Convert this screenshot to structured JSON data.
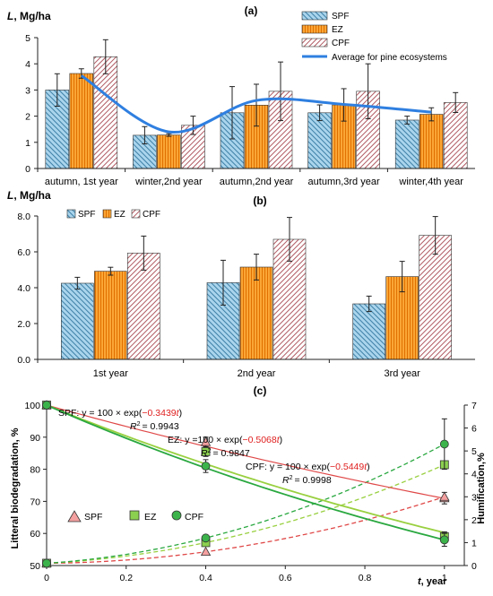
{
  "panels": [
    {
      "label": "(a)",
      "ylabel_var": "L",
      "ylabel_unit": ", Mg/ha",
      "chart_data": {
        "type": "bar",
        "categories": [
          "autumn, 1st year",
          "winter,2nd year",
          "autumn,2nd year",
          "autumn,3rd year",
          "winter,4th year"
        ],
        "series": [
          {
            "name": "SPF",
            "values": [
              3.0,
              1.27,
              2.13,
              2.13,
              1.85
            ],
            "errors": [
              0.62,
              0.33,
              1.0,
              0.3,
              0.15
            ]
          },
          {
            "name": "EZ",
            "values": [
              3.63,
              1.28,
              2.42,
              2.43,
              2.07
            ],
            "errors": [
              0.18,
              0.05,
              0.8,
              0.62,
              0.25
            ]
          },
          {
            "name": "CPF",
            "values": [
              4.27,
              1.65,
              2.95,
              2.95,
              2.52
            ],
            "errors": [
              0.65,
              0.35,
              1.12,
              1.05,
              0.38
            ]
          }
        ],
        "line": {
          "name": "Average for pine ecosystems",
          "values": [
            3.55,
            1.4,
            2.6,
            2.45,
            2.15
          ]
        },
        "ylim": [
          0,
          5
        ],
        "yticks": [
          "0",
          "1",
          "2",
          "3",
          "4",
          "5"
        ],
        "legend_position": "top-right",
        "grid": false
      }
    },
    {
      "label": "(b)",
      "ylabel_var": "L",
      "ylabel_unit": ", Mg/ha",
      "chart_data": {
        "type": "bar",
        "categories": [
          "1st year",
          "2nd year",
          "3rd year"
        ],
        "series": [
          {
            "name": "SPF",
            "values": [
              4.25,
              4.28,
              3.1
            ],
            "errors": [
              0.33,
              1.25,
              0.43
            ]
          },
          {
            "name": "EZ",
            "values": [
              4.92,
              5.15,
              4.62
            ],
            "errors": [
              0.22,
              0.72,
              0.85
            ]
          },
          {
            "name": "CPF",
            "values": [
              5.93,
              6.7,
              6.92
            ],
            "errors": [
              0.95,
              1.22,
              1.05
            ]
          }
        ],
        "ylim": [
          0,
          8
        ],
        "yticks": [
          "0.0",
          "2.0",
          "4.0",
          "6.0",
          "8.0"
        ],
        "legend_position": "top-left",
        "grid": false
      }
    },
    {
      "label": "(c)",
      "ylabel": "Litteral biodegradation, %",
      "y2label": "Humification,%",
      "xlabel_var": "t",
      "xlabel_unit": ", year",
      "chart_data": {
        "type": "scatter",
        "x": [
          0,
          0.4,
          1
        ],
        "xlim": [
          0,
          1.05
        ],
        "xticks": [
          "0",
          "0.2",
          "0.4",
          "0.6",
          "0.8",
          "1"
        ],
        "ylim": [
          50,
          100
        ],
        "yticks": [
          "50",
          "60",
          "70",
          "80",
          "90",
          "100"
        ],
        "y2lim": [
          0,
          7
        ],
        "y2ticks": [
          "0",
          "1",
          "2",
          "3",
          "4",
          "5",
          "6",
          "7"
        ],
        "biodegradation": [
          {
            "name": "SPF",
            "values": [
              100,
              88.5,
              71
            ],
            "errors": [
              0,
              1.5,
              1.8
            ],
            "rate": 0.3439
          },
          {
            "name": "EZ",
            "values": [
              100,
              85.5,
              59
            ],
            "errors": [
              0,
              1.5,
              1.5
            ],
            "rate": 0.5068
          },
          {
            "name": "CPF",
            "values": [
              100,
              81,
              58
            ],
            "errors": [
              0,
              2.0,
              2.0
            ],
            "rate": 0.5449
          }
        ],
        "humification": [
          {
            "name": "SPF",
            "values": [
              0.1,
              0.6,
              3.0
            ]
          },
          {
            "name": "EZ",
            "values": [
              0.1,
              1.0,
              4.4
            ]
          },
          {
            "name": "CPF",
            "values": [
              0.1,
              1.2,
              5.3
            ],
            "errors": [
              0,
              0,
              1.1
            ]
          }
        ],
        "equations": [
          {
            "prefix": "SPF: y = 100 × exp(",
            "coef": "−0.3439",
            "var": "t",
            "suffix": ")",
            "r2": "= 0.9943"
          },
          {
            "prefix": "EZ: y =100 × exp(",
            "coef": "−0.5068",
            "var": "t",
            "suffix": ")",
            "r2": "= 0.9847"
          },
          {
            "prefix": "CPF: y = 100 × exp(",
            "coef": "−0.5449",
            "var": "t",
            "suffix": ")",
            "r2": "= 0.9998"
          }
        ],
        "r2_label": "R",
        "legend_position": "center-left",
        "grid": false
      }
    }
  ],
  "colors": {
    "SPF": "#4a90b8",
    "EZ": "#ff8c00",
    "CPF": "#c7747a",
    "avg_line": "#2f7fe0",
    "c_SPF_line": "#e04848",
    "c_EZ_line": "#99d040",
    "c_CPF_line": "#2aa840",
    "c_SPF_fill": "#f4a0a0",
    "c_EZ_fill": "#8cd050",
    "c_CPF_fill": "#3cb44b",
    "coef": "#e02020"
  }
}
